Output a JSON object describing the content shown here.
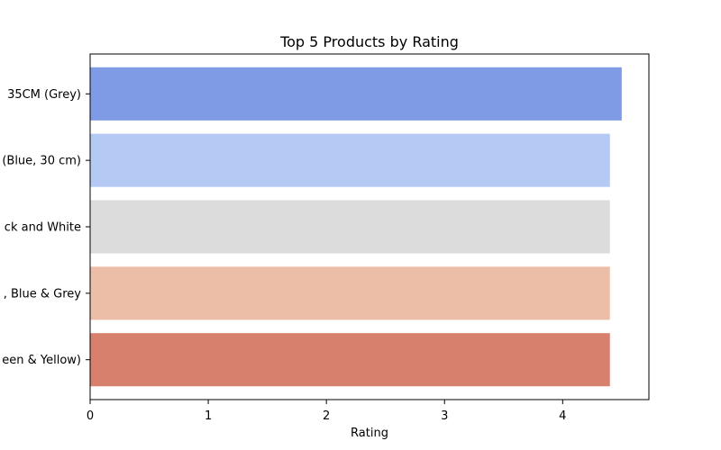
{
  "chart_data": {
    "type": "bar",
    "orientation": "horizontal",
    "title": "Top 5 Products by Rating",
    "xlabel": "Rating",
    "ylabel": "",
    "xlim": [
      0,
      4.73
    ],
    "xticks": [
      "0",
      "1",
      "2",
      "3",
      "4"
    ],
    "categories": [
      "35CM (Grey)",
      "(Blue, 30 cm)",
      "ck and White",
      ", Blue & Grey",
      "een & Yellow)"
    ],
    "values": [
      4.5,
      4.4,
      4.4,
      4.4,
      4.4
    ],
    "colors": [
      "#7f9be5",
      "#b4c9f4",
      "#dcdcdc",
      "#ecbda7",
      "#d8806e"
    ],
    "grid": false,
    "legend": "none"
  }
}
